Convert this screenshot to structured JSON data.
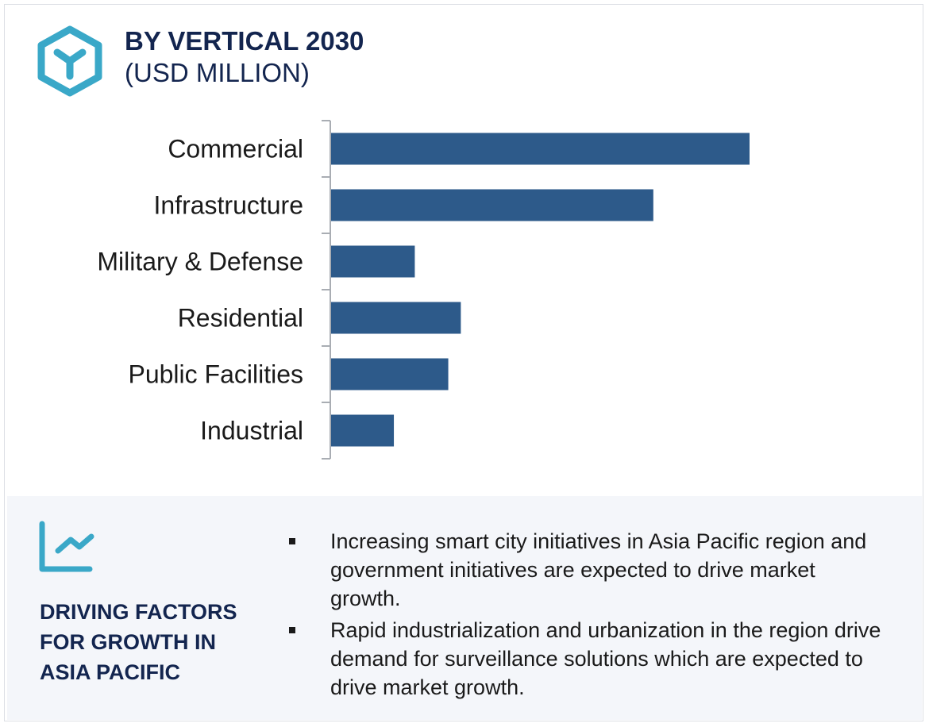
{
  "header": {
    "title": "BY VERTICAL 2030",
    "subtitle": "(USD MILLION)",
    "icon": "hexagon-y-icon"
  },
  "colors": {
    "bar": "#2d5a8a",
    "title": "#13254f",
    "accent": "#3aa8c8",
    "panel": "#f4f6fa"
  },
  "chart_data": {
    "type": "bar",
    "orientation": "horizontal",
    "title": "BY VERTICAL 2030",
    "subtitle": "(USD MILLION)",
    "categories": [
      "Commercial",
      "Infrastructure",
      "Military & Defense",
      "Residential",
      "Public Facilities",
      "Industrial"
    ],
    "values": [
      1.0,
      0.77,
      0.2,
      0.31,
      0.28,
      0.15
    ],
    "value_note": "relative to Commercial; no value axis printed",
    "grid": false
  },
  "factors": {
    "icon": "line-chart-trend-icon",
    "heading_lines": [
      "DRIVING FACTORS",
      "FOR GROWTH IN",
      "ASIA PACIFIC"
    ],
    "bullets": [
      "Increasing smart city initiatives in Asia Pacific region and government initiatives are expected to drive market growth.",
      "Rapid industrialization and urbanization in the region drive demand for surveillance solutions which are expected to drive market growth."
    ]
  }
}
